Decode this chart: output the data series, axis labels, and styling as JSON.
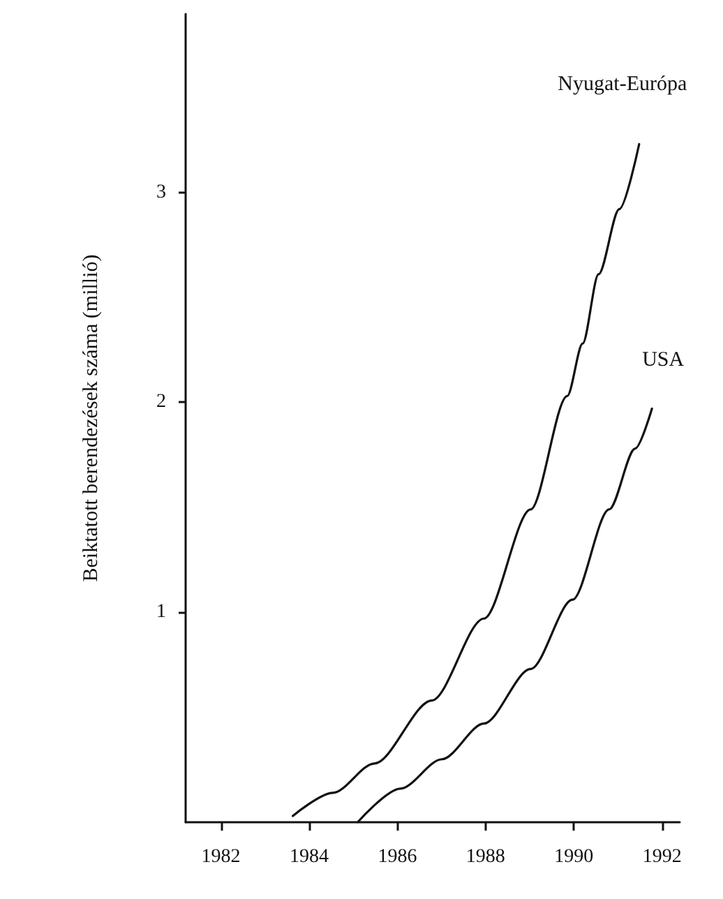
{
  "chart_data": {
    "type": "line",
    "ylabel": "Beiktatott berendezések száma (millió)",
    "xlim": [
      1981.2,
      1992.4
    ],
    "xticks": [
      1982,
      1984,
      1986,
      1988,
      1990,
      1992
    ],
    "ylim": [
      0,
      3.85
    ],
    "yticks": [
      1,
      2,
      3
    ],
    "grid": false,
    "legend": false,
    "marker": "none",
    "line_style": "solid",
    "series": [
      {
        "name": "Nyugat-Európa",
        "color": "#111111",
        "x": [
          1983.63,
          1984.54,
          1985.48,
          1986.78,
          1987.96,
          1989.02,
          1989.85,
          1990.2,
          1990.56,
          1991.03,
          1991.48
        ],
        "values": [
          0.03,
          0.14,
          0.28,
          0.58,
          0.97,
          1.49,
          2.03,
          2.28,
          2.61,
          2.92,
          3.23
        ]
      },
      {
        "name": "USA",
        "color": "#111111",
        "x": [
          1985.1,
          1986.07,
          1987.01,
          1987.96,
          1989.02,
          1989.97,
          1990.8,
          1991.39,
          1991.77
        ],
        "values": [
          0,
          0.16,
          0.3,
          0.47,
          0.73,
          1.06,
          1.49,
          1.78,
          1.97
        ]
      }
    ]
  }
}
